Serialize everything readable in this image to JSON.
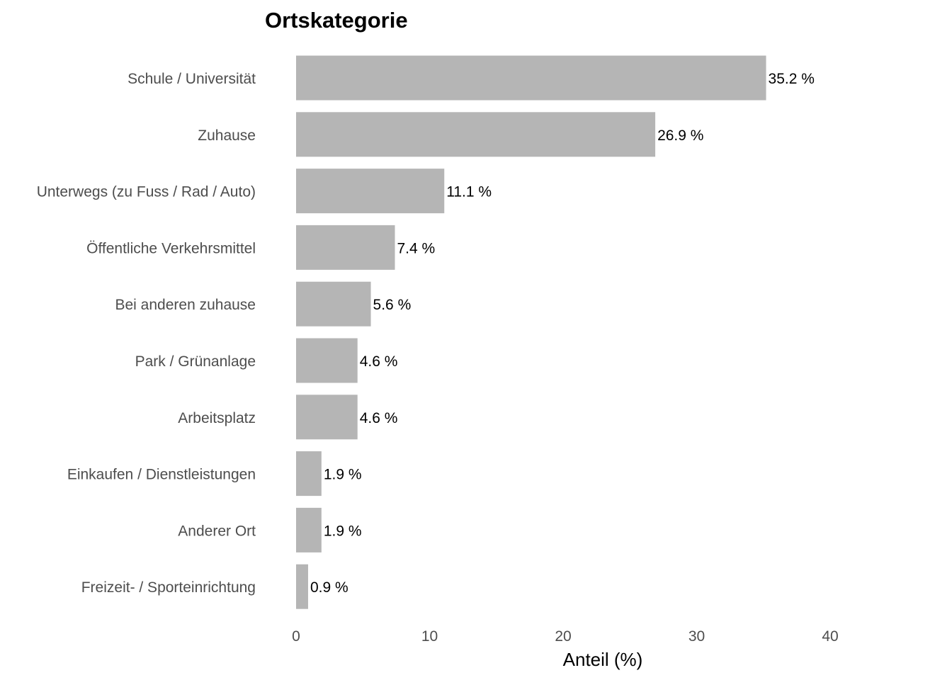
{
  "chart_data": {
    "type": "bar",
    "orientation": "horizontal",
    "title": "Ortskategorie",
    "xlabel": "Anteil (%)",
    "ylabel": "",
    "categories": [
      "Schule / Universität",
      "Zuhause",
      "Unterwegs (zu Fuss / Rad / Auto)",
      "Öffentliche Verkehrsmittel",
      "Bei anderen zuhause",
      "Park / Grünanlage",
      "Arbeitsplatz",
      "Einkaufen / Dienstleistungen",
      "Anderer Ort",
      "Freizeit- / Sporteinrichtung"
    ],
    "values": [
      35.2,
      26.9,
      11.1,
      7.4,
      5.6,
      4.6,
      4.6,
      1.9,
      1.9,
      0.9
    ],
    "data_labels": [
      "35.2 %",
      "26.9 %",
      "11.1 %",
      "7.4 %",
      "5.6 %",
      "4.6 %",
      "4.6 %",
      "1.9 %",
      "1.9 %",
      "0.9 %"
    ],
    "xlim": [
      0,
      40
    ],
    "xticks": [
      0,
      10,
      20,
      30,
      40
    ],
    "xtick_labels": [
      "0",
      "10",
      "20",
      "30",
      "40"
    ],
    "grid": false,
    "legend": "none",
    "bar_color": "#b5b5b5"
  }
}
